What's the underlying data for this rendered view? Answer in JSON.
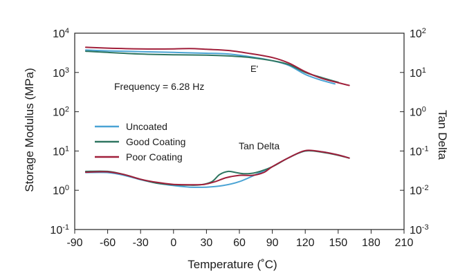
{
  "chart_data": {
    "type": "line",
    "title": "",
    "xlabel": "Temperature (˚C)",
    "ylabel_left": "Storage Modulus (MPa)",
    "ylabel_right": "Tan Delta",
    "xlim": [
      -90,
      210
    ],
    "x_ticks": [
      -90,
      -60,
      -30,
      0,
      30,
      60,
      90,
      120,
      150,
      180,
      210
    ],
    "left_axis": {
      "scale": "log",
      "exp_range": [
        -1,
        4
      ],
      "ticks": [
        {
          "base": "10",
          "exp": "4",
          "value": 4
        },
        {
          "base": "10",
          "exp": "3",
          "value": 3
        },
        {
          "base": "10",
          "exp": "2",
          "value": 2
        },
        {
          "base": "10",
          "exp": "1",
          "value": 1
        },
        {
          "base": "10",
          "exp": "0",
          "value": 0
        },
        {
          "base": "10",
          "exp": "-1",
          "value": -1
        }
      ]
    },
    "right_axis": {
      "scale": "log",
      "exp_range": [
        -3,
        2
      ],
      "ticks": [
        {
          "base": "10",
          "exp": "2",
          "value": 2
        },
        {
          "base": "10",
          "exp": "1",
          "value": 1
        },
        {
          "base": "10",
          "exp": "0",
          "value": 0
        },
        {
          "base": "10",
          "exp": "-1",
          "value": -1
        },
        {
          "base": "10",
          "exp": "-2",
          "value": -2
        },
        {
          "base": "10",
          "exp": "-3",
          "value": -3
        }
      ]
    },
    "annotations": {
      "frequency": "Frequency = 6.28 Hz",
      "storage_label": "E'",
      "tan_label": "Tan Delta"
    },
    "legend_position": "left",
    "legend": [
      {
        "name": "Uncoated",
        "color": "#4aa3d4"
      },
      {
        "name": "Good Coating",
        "color": "#2e7560"
      },
      {
        "name": "Poor Coating",
        "color": "#a01f3a"
      }
    ],
    "series": [
      {
        "name": "Uncoated",
        "color": "#4aa3d4",
        "group": "storage",
        "points": [
          [
            -80,
            3.57
          ],
          [
            -60,
            3.55
          ],
          [
            -30,
            3.53
          ],
          [
            0,
            3.51
          ],
          [
            30,
            3.49
          ],
          [
            50,
            3.47
          ],
          [
            70,
            3.4
          ],
          [
            90,
            3.3
          ],
          [
            105,
            3.18
          ],
          [
            120,
            2.95
          ],
          [
            135,
            2.8
          ],
          [
            147,
            2.71
          ]
        ]
      },
      {
        "name": "Good Coating",
        "color": "#2e7560",
        "group": "storage",
        "points": [
          [
            -80,
            3.54
          ],
          [
            -60,
            3.51
          ],
          [
            -30,
            3.47
          ],
          [
            0,
            3.45
          ],
          [
            30,
            3.44
          ],
          [
            50,
            3.42
          ],
          [
            70,
            3.38
          ],
          [
            90,
            3.3
          ],
          [
            105,
            3.2
          ],
          [
            120,
            3.0
          ],
          [
            135,
            2.87
          ],
          [
            150,
            2.75
          ]
        ]
      },
      {
        "name": "Poor Coating",
        "color": "#a01f3a",
        "group": "storage",
        "points": [
          [
            -80,
            3.64
          ],
          [
            -60,
            3.62
          ],
          [
            -30,
            3.6
          ],
          [
            0,
            3.6
          ],
          [
            15,
            3.61
          ],
          [
            30,
            3.59
          ],
          [
            50,
            3.56
          ],
          [
            70,
            3.48
          ],
          [
            90,
            3.38
          ],
          [
            105,
            3.24
          ],
          [
            120,
            3.02
          ],
          [
            135,
            2.85
          ],
          [
            150,
            2.74
          ],
          [
            160,
            2.67
          ]
        ]
      },
      {
        "name": "Uncoated",
        "color": "#4aa3d4",
        "group": "tan_delta",
        "points": [
          [
            -80,
            -1.55
          ],
          [
            -60,
            -1.55
          ],
          [
            -45,
            -1.62
          ],
          [
            -30,
            -1.73
          ],
          [
            -15,
            -1.82
          ],
          [
            0,
            -1.88
          ],
          [
            15,
            -1.92
          ],
          [
            30,
            -1.92
          ],
          [
            45,
            -1.88
          ],
          [
            60,
            -1.78
          ],
          [
            75,
            -1.6
          ],
          [
            90,
            -1.4
          ],
          [
            105,
            -1.17
          ],
          [
            120,
            -1.0
          ],
          [
            135,
            -1.02
          ],
          [
            150,
            -1.1
          ],
          [
            160,
            -1.18
          ]
        ]
      },
      {
        "name": "Good Coating",
        "color": "#2e7560",
        "group": "tan_delta",
        "points": [
          [
            -80,
            -1.52
          ],
          [
            -60,
            -1.52
          ],
          [
            -45,
            -1.6
          ],
          [
            -30,
            -1.72
          ],
          [
            -15,
            -1.82
          ],
          [
            0,
            -1.86
          ],
          [
            15,
            -1.87
          ],
          [
            25,
            -1.86
          ],
          [
            35,
            -1.78
          ],
          [
            42,
            -1.6
          ],
          [
            50,
            -1.52
          ],
          [
            57,
            -1.55
          ],
          [
            65,
            -1.58
          ],
          [
            75,
            -1.55
          ],
          [
            90,
            -1.4
          ],
          [
            105,
            -1.17
          ],
          [
            120,
            -1.0
          ],
          [
            135,
            -1.03
          ],
          [
            150,
            -1.11
          ],
          [
            160,
            -1.18
          ]
        ]
      },
      {
        "name": "Poor Coating",
        "color": "#a01f3a",
        "group": "tan_delta",
        "points": [
          [
            -80,
            -1.54
          ],
          [
            -60,
            -1.53
          ],
          [
            -45,
            -1.6
          ],
          [
            -30,
            -1.72
          ],
          [
            -15,
            -1.8
          ],
          [
            0,
            -1.85
          ],
          [
            15,
            -1.86
          ],
          [
            28,
            -1.85
          ],
          [
            38,
            -1.78
          ],
          [
            48,
            -1.68
          ],
          [
            60,
            -1.62
          ],
          [
            72,
            -1.62
          ],
          [
            82,
            -1.55
          ],
          [
            90,
            -1.4
          ],
          [
            105,
            -1.17
          ],
          [
            120,
            -0.99
          ],
          [
            135,
            -1.02
          ],
          [
            150,
            -1.1
          ],
          [
            160,
            -1.18
          ]
        ]
      }
    ]
  }
}
